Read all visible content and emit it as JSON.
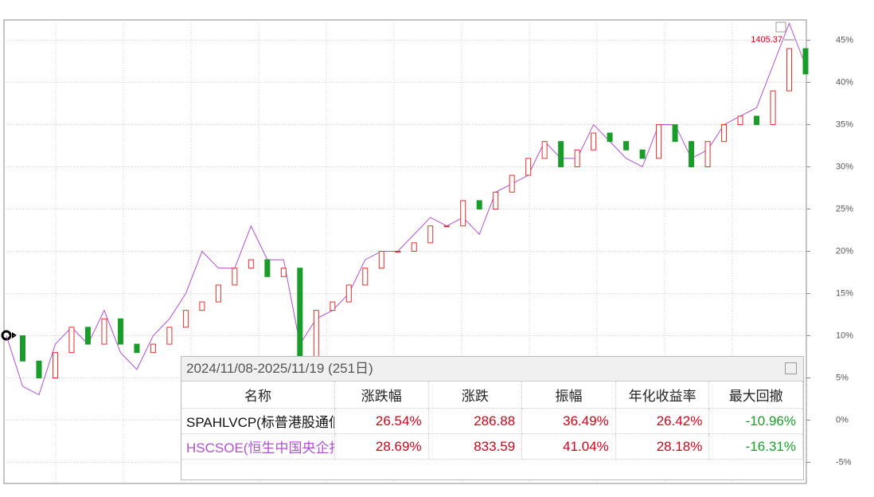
{
  "chart_data": {
    "type": "candle-line",
    "annotation": "1405.37",
    "ylim": [
      -7.5,
      47.4
    ],
    "yticks": [
      {
        "value": 45,
        "label": "45%"
      },
      {
        "value": 40,
        "label": "40%"
      },
      {
        "value": 35,
        "label": "35%"
      },
      {
        "value": 30,
        "label": "30%"
      },
      {
        "value": 25,
        "label": "25%"
      },
      {
        "value": 20,
        "label": "20%"
      },
      {
        "value": 15,
        "label": "15%"
      },
      {
        "value": 10,
        "label": "10%"
      },
      {
        "value": 5,
        "label": "5%"
      },
      {
        "value": 0,
        "label": "0%"
      },
      {
        "value": -5,
        "label": "-5%"
      }
    ],
    "grid": true,
    "up_color": "#e0302f",
    "down_color": "#1a9c2a",
    "series": [
      {
        "name": "SPAHLVCP(标普港股",
        "color": "#e0302f",
        "values": [
          10,
          7,
          5,
          8,
          11,
          9,
          12,
          9,
          8,
          9,
          11,
          13,
          14,
          16,
          18,
          19,
          17,
          18,
          7,
          13,
          14,
          16,
          18,
          20,
          20,
          21,
          23,
          23,
          26,
          25,
          27,
          29,
          31,
          33,
          30,
          32,
          34,
          33,
          32,
          31,
          35,
          33,
          30,
          33,
          35,
          36,
          35,
          39,
          44,
          41
        ]
      },
      {
        "name": "HSCSOE(恒生中国央企",
        "color": "#b050d0",
        "values": [
          10,
          4,
          3,
          9,
          11,
          9,
          13,
          8,
          6,
          10,
          12,
          15,
          20,
          18,
          18,
          23,
          19,
          19,
          9,
          12,
          13,
          15,
          19,
          20,
          20,
          22,
          24,
          23,
          24,
          22,
          27,
          28,
          29,
          33,
          31,
          31,
          35,
          33,
          31,
          30,
          35,
          35,
          31,
          32,
          35,
          36,
          37,
          42,
          47,
          42
        ]
      }
    ]
  },
  "table": {
    "title": "2024/11/08-2025/11/19 (251日)",
    "headers": [
      "名称",
      "涨跌幅",
      "涨跌",
      "振幅",
      "年化收益率",
      "最大回撤"
    ],
    "rows": [
      [
        "SPAHLVCP(标普港股通低波红利指数)",
        "26.54%",
        "286.88",
        "36.49%",
        "26.42%",
        "-10.96%"
      ],
      [
        "HSCSOE(恒生中国央企指数)",
        "28.69%",
        "833.59",
        "41.04%",
        "28.18%",
        "-16.31%"
      ]
    ]
  }
}
